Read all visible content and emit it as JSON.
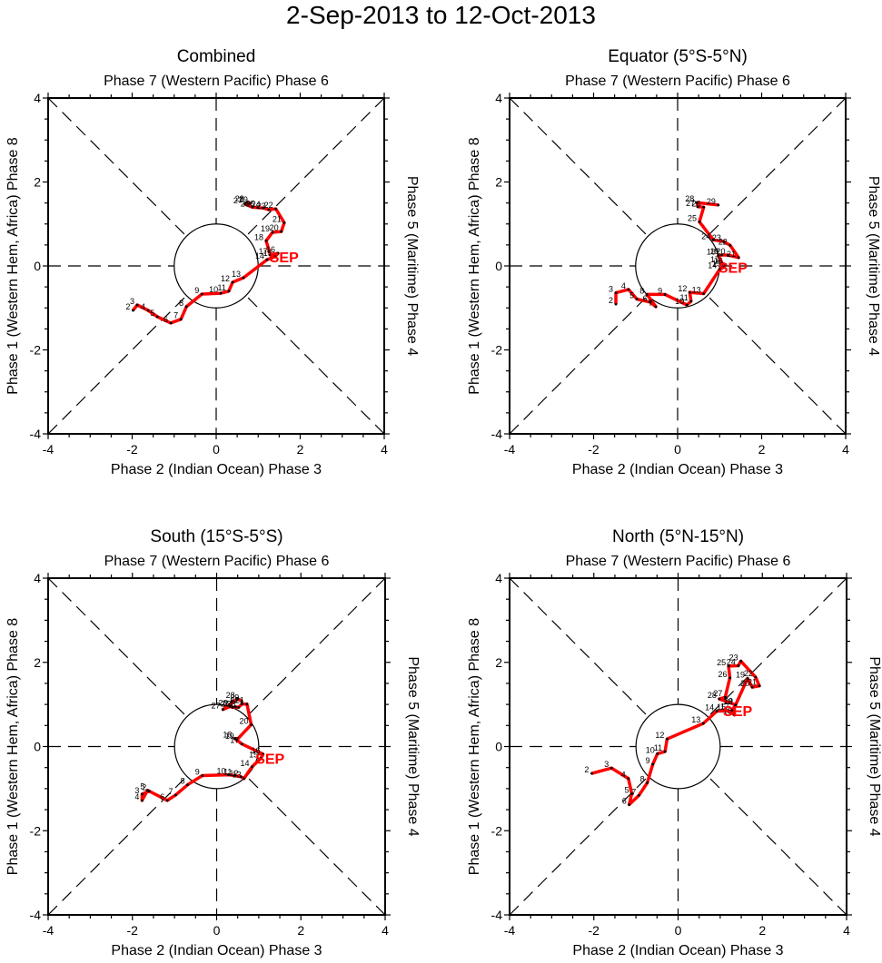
{
  "title": "2-Sep-2013 to 12-Oct-2013",
  "chart_data": [
    {
      "type": "line",
      "title": "Combined",
      "top_label": "Phase 7 (Western Pacific) Phase 6",
      "bottom_label": "Phase 2 (Indian Ocean) Phase 3",
      "left_label": "Phase 1 (Western Hem, Africa) Phase 8",
      "right_label": "Phase 5 (Maritime) Phase 4",
      "xlim": [
        -4,
        4
      ],
      "ylim": [
        -4,
        4
      ],
      "xticks": [
        "-4",
        "-2",
        "0",
        "2",
        "4"
      ],
      "yticks": [
        "-4",
        "-2",
        "0",
        "2",
        "4"
      ],
      "month_label": "SEP",
      "line_color": "#ff0000",
      "series": [
        {
          "name": "Sep 2013",
          "points": [
            {
              "day": "2",
              "x": -1.98,
              "y": -1.06
            },
            {
              "day": "3",
              "x": -1.88,
              "y": -0.93
            },
            {
              "day": "4",
              "x": -1.62,
              "y": -1.06
            },
            {
              "day": "5",
              "x": -1.4,
              "y": -1.21
            },
            {
              "day": "6",
              "x": -1.08,
              "y": -1.36
            },
            {
              "day": "7",
              "x": -0.84,
              "y": -1.27
            },
            {
              "day": "8",
              "x": -0.71,
              "y": -0.97
            },
            {
              "day": "9",
              "x": -0.34,
              "y": -0.67
            },
            {
              "day": "10",
              "x": 0.11,
              "y": -0.65
            },
            {
              "day": "11",
              "x": 0.3,
              "y": -0.6
            },
            {
              "day": "12",
              "x": 0.39,
              "y": -0.39
            },
            {
              "day": "13",
              "x": 0.65,
              "y": -0.28
            },
            {
              "day": "14",
              "x": 1.21,
              "y": 0.15
            },
            {
              "day": "15",
              "x": 1.4,
              "y": 0.22
            },
            {
              "day": "16",
              "x": 1.47,
              "y": 0.3
            },
            {
              "day": "17",
              "x": 1.29,
              "y": 0.26
            },
            {
              "day": "18",
              "x": 1.19,
              "y": 0.6
            },
            {
              "day": "19",
              "x": 1.34,
              "y": 0.8
            },
            {
              "day": "20",
              "x": 1.55,
              "y": 0.82
            },
            {
              "day": "21",
              "x": 1.62,
              "y": 1.03
            },
            {
              "day": "22",
              "x": 1.42,
              "y": 1.36
            },
            {
              "day": "23",
              "x": 1.25,
              "y": 1.34
            },
            {
              "day": "24",
              "x": 1.12,
              "y": 1.38
            },
            {
              "day": "25",
              "x": 0.99,
              "y": 1.39
            },
            {
              "day": "26",
              "x": 0.86,
              "y": 1.4
            },
            {
              "day": "27",
              "x": 0.69,
              "y": 1.47
            },
            {
              "day": "28",
              "x": 0.73,
              "y": 1.51
            },
            {
              "day": "29",
              "x": 0.82,
              "y": 1.49
            }
          ]
        }
      ]
    },
    {
      "type": "line",
      "title": "Equator (5°S-5°N)",
      "top_label": "Phase 7 (Western Pacific) Phase 6",
      "bottom_label": "Phase 2 (Indian Ocean) Phase 3",
      "left_label": "Phase 1 (Western Hem, Africa) Phase 8",
      "right_label": "Phase 5 (Maritime) Phase 4",
      "xlim": [
        -4,
        4
      ],
      "ylim": [
        -4,
        4
      ],
      "xticks": [
        "-4",
        "-2",
        "0",
        "2",
        "4"
      ],
      "yticks": [
        "-4",
        "-2",
        "0",
        "2",
        "4"
      ],
      "month_label": "SEP",
      "line_color": "#ff0000",
      "series": [
        {
          "name": "Sep 2013",
          "points": [
            {
              "day": "2",
              "x": -1.47,
              "y": -0.91
            },
            {
              "day": "3",
              "x": -1.47,
              "y": -0.64
            },
            {
              "day": "4",
              "x": -1.17,
              "y": -0.56
            },
            {
              "day": "5",
              "x": -0.97,
              "y": -0.79
            },
            {
              "day": "6",
              "x": -0.66,
              "y": -0.86
            },
            {
              "day": "7",
              "x": -0.52,
              "y": -0.97
            },
            {
              "day": "8",
              "x": -0.73,
              "y": -0.68
            },
            {
              "day": "9",
              "x": -0.3,
              "y": -0.68
            },
            {
              "day": "10",
              "x": 0.22,
              "y": -0.93
            },
            {
              "day": "11",
              "x": 0.32,
              "y": -0.84
            },
            {
              "day": "12",
              "x": 0.29,
              "y": -0.63
            },
            {
              "day": "13",
              "x": 0.62,
              "y": -0.66
            },
            {
              "day": "14",
              "x": 1.0,
              "y": -0.08
            },
            {
              "day": "15",
              "x": 1.1,
              "y": -0.03
            },
            {
              "day": "16",
              "x": 1.14,
              "y": 0.03
            },
            {
              "day": "17",
              "x": 1.06,
              "y": 0.06
            },
            {
              "day": "18",
              "x": 0.97,
              "y": 0.25
            },
            {
              "day": "19",
              "x": 1.05,
              "y": 0.26
            },
            {
              "day": "20",
              "x": 1.2,
              "y": 0.26
            },
            {
              "day": "21",
              "x": 1.45,
              "y": 0.2
            },
            {
              "day": "22",
              "x": 1.25,
              "y": 0.49
            },
            {
              "day": "23",
              "x": 1.1,
              "y": 0.58
            },
            {
              "day": "24",
              "x": 0.85,
              "y": 0.62
            },
            {
              "day": "25",
              "x": 0.52,
              "y": 1.05
            },
            {
              "day": "26",
              "x": 0.62,
              "y": 1.4
            },
            {
              "day": "27",
              "x": 0.48,
              "y": 1.41
            },
            {
              "day": "28",
              "x": 0.46,
              "y": 1.51
            },
            {
              "day": "29",
              "x": 0.97,
              "y": 1.45
            }
          ]
        }
      ]
    },
    {
      "type": "line",
      "title": "South (15°S-5°S)",
      "top_label": "Phase 7 (Western Pacific) Phase 6",
      "bottom_label": "Phase 2 (Indian Ocean) Phase 3",
      "left_label": "Phase 1 (Western Hem, Africa) Phase 8",
      "right_label": "Phase 5 (Maritime) Phase 4",
      "xlim": [
        -4,
        4
      ],
      "ylim": [
        -4,
        4
      ],
      "xticks": [
        "-4",
        "-2",
        "0",
        "2",
        "4"
      ],
      "yticks": [
        "-4",
        "-2",
        "0",
        "2",
        "4"
      ],
      "month_label": "SEP",
      "line_color": "#ff0000",
      "series": [
        {
          "name": "Sep 2013",
          "points": [
            {
              "day": "2",
              "x": -1.6,
              "y": -1.06
            },
            {
              "day": "3",
              "x": -1.77,
              "y": -1.13
            },
            {
              "day": "4",
              "x": -1.77,
              "y": -1.28
            },
            {
              "day": "5",
              "x": -1.64,
              "y": -1.04
            },
            {
              "day": "6",
              "x": -1.17,
              "y": -1.28
            },
            {
              "day": "7",
              "x": -0.97,
              "y": -1.15
            },
            {
              "day": "8",
              "x": -0.69,
              "y": -0.91
            },
            {
              "day": "9",
              "x": -0.34,
              "y": -0.69
            },
            {
              "day": "10",
              "x": 0.28,
              "y": -0.67
            },
            {
              "day": "11",
              "x": 0.43,
              "y": -0.69
            },
            {
              "day": "12",
              "x": 0.58,
              "y": -0.72
            },
            {
              "day": "13",
              "x": 0.65,
              "y": -0.76
            },
            {
              "day": "14",
              "x": 0.84,
              "y": -0.48
            },
            {
              "day": "15",
              "x": 1.05,
              "y": -0.28
            },
            {
              "day": "16",
              "x": 1.1,
              "y": -0.18
            },
            {
              "day": "17",
              "x": 0.6,
              "y": 0.06
            },
            {
              "day": "18",
              "x": 0.43,
              "y": 0.19
            },
            {
              "day": "19",
              "x": 0.48,
              "y": 0.16
            },
            {
              "day": "20",
              "x": 0.82,
              "y": 0.52
            },
            {
              "day": "21",
              "x": 0.72,
              "y": 1.01
            },
            {
              "day": "22",
              "x": 0.6,
              "y": 1.01
            },
            {
              "day": "23",
              "x": 0.52,
              "y": 0.93
            },
            {
              "day": "24",
              "x": 0.45,
              "y": 0.94
            },
            {
              "day": "25",
              "x": 0.38,
              "y": 0.93
            },
            {
              "day": "26",
              "x": 0.32,
              "y": 0.95
            },
            {
              "day": "27",
              "x": 0.15,
              "y": 0.88
            },
            {
              "day": "28",
              "x": 0.5,
              "y": 1.13
            },
            {
              "day": "29",
              "x": 0.6,
              "y": 1.08
            }
          ]
        }
      ]
    },
    {
      "type": "line",
      "title": "North (5°N-15°N)",
      "top_label": "Phase 7 (Western Pacific) Phase 6",
      "bottom_label": "Phase 2 (Indian Ocean) Phase 3",
      "left_label": "Phase 1 (Western Hem, Africa) Phase 8",
      "right_label": "Phase 5 (Maritime) Phase 4",
      "xlim": [
        -4,
        4
      ],
      "ylim": [
        -4,
        4
      ],
      "xticks": [
        "-4",
        "-2",
        "0",
        "2",
        "4"
      ],
      "yticks": [
        "-4",
        "-2",
        "0",
        "2",
        "4"
      ],
      "month_label": "SEP",
      "line_color": "#ff0000",
      "series": [
        {
          "name": "Sep 2013",
          "points": [
            {
              "day": "2",
              "x": -2.05,
              "y": -0.64
            },
            {
              "day": "3",
              "x": -1.58,
              "y": -0.51
            },
            {
              "day": "4",
              "x": -1.18,
              "y": -0.76
            },
            {
              "day": "5",
              "x": -1.1,
              "y": -1.12
            },
            {
              "day": "6",
              "x": -1.16,
              "y": -1.38
            },
            {
              "day": "7",
              "x": -0.93,
              "y": -1.16
            },
            {
              "day": "8",
              "x": -0.73,
              "y": -0.86
            },
            {
              "day": "9",
              "x": -0.6,
              "y": -0.42
            },
            {
              "day": "10",
              "x": -0.49,
              "y": -0.17
            },
            {
              "day": "11",
              "x": -0.31,
              "y": -0.12
            },
            {
              "day": "12",
              "x": -0.26,
              "y": 0.18
            },
            {
              "day": "13",
              "x": 0.6,
              "y": 0.55
            },
            {
              "day": "14",
              "x": 0.92,
              "y": 0.84
            },
            {
              "day": "15",
              "x": 1.2,
              "y": 0.85
            },
            {
              "day": "16",
              "x": 1.34,
              "y": 0.75
            },
            {
              "day": "17",
              "x": 1.28,
              "y": 0.86
            },
            {
              "day": "18",
              "x": 1.36,
              "y": 0.98
            },
            {
              "day": "19",
              "x": 1.65,
              "y": 1.62
            },
            {
              "day": "20",
              "x": 1.76,
              "y": 1.41
            },
            {
              "day": "21",
              "x": 1.93,
              "y": 1.44
            },
            {
              "day": "22",
              "x": 1.84,
              "y": 1.65
            },
            {
              "day": "23",
              "x": 1.49,
              "y": 2.03
            },
            {
              "day": "24",
              "x": 1.43,
              "y": 1.92
            },
            {
              "day": "25",
              "x": 1.2,
              "y": 1.91
            },
            {
              "day": "26",
              "x": 1.23,
              "y": 1.63
            },
            {
              "day": "27",
              "x": 1.12,
              "y": 1.17
            },
            {
              "day": "28",
              "x": 0.98,
              "y": 1.13
            },
            {
              "day": "29",
              "x": 1.37,
              "y": 0.99
            }
          ]
        }
      ]
    }
  ]
}
